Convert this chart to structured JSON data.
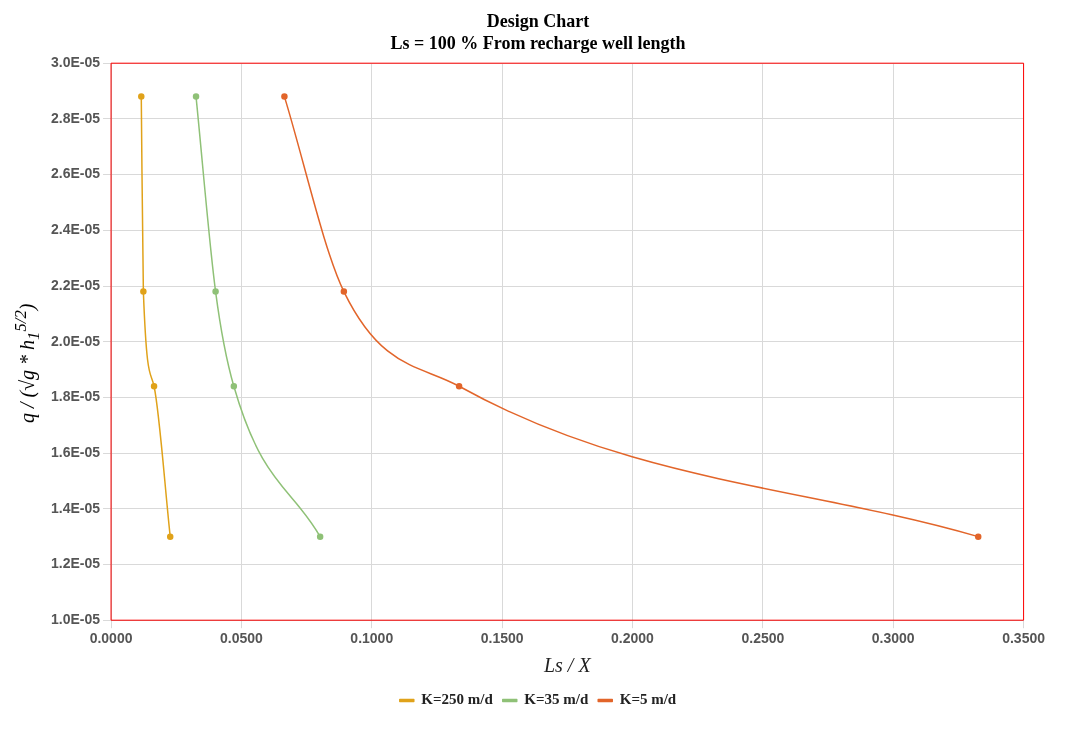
{
  "chart_data": {
    "type": "line",
    "title": "Design Chart",
    "subtitle": "Ls = 100 % From recharge well length",
    "xlabel": "Ls / X",
    "ylabel": "q / (√g * h$_{1}$$^{5/2}$)",
    "series": [
      {
        "name": "K=250 m/d",
        "color": "#e0a21a",
        "x": [
          0.0116,
          0.0124,
          0.0165,
          0.0227
        ],
        "values": [
          2.88e-05,
          2.18e-05,
          1.84e-05,
          1.3e-05
        ]
      },
      {
        "name": "K=35 m/d",
        "color": "#8fc177",
        "x": [
          0.0326,
          0.0401,
          0.0471,
          0.0802
        ],
        "values": [
          2.88e-05,
          2.18e-05,
          1.84e-05,
          1.3e-05
        ]
      },
      {
        "name": "K=5 m/d",
        "color": "#e2652a",
        "x": [
          0.0665,
          0.0893,
          0.1335,
          0.3326
        ],
        "values": [
          2.88e-05,
          2.18e-05,
          1.84e-05,
          1.3e-05
        ]
      }
    ],
    "xlim": [
      0,
      0.35
    ],
    "xticks": [
      {
        "value": 0,
        "label": "0.0000"
      },
      {
        "value": 0.05,
        "label": "0.0500"
      },
      {
        "value": 0.1,
        "label": "0.1000"
      },
      {
        "value": 0.15,
        "label": "0.1500"
      },
      {
        "value": 0.2,
        "label": "0.2000"
      },
      {
        "value": 0.25,
        "label": "0.2500"
      },
      {
        "value": 0.3,
        "label": "0.3000"
      },
      {
        "value": 0.35,
        "label": "0.3500"
      }
    ],
    "ylim": [
      1e-05,
      3e-05
    ],
    "yticks": [
      {
        "value": 1e-05,
        "label": "1.0E-05"
      },
      {
        "value": 1.2e-05,
        "label": "1.2E-05"
      },
      {
        "value": 1.4e-05,
        "label": "1.4E-05"
      },
      {
        "value": 1.6e-05,
        "label": "1.6E-05"
      },
      {
        "value": 1.8e-05,
        "label": "1.8E-05"
      },
      {
        "value": 2e-05,
        "label": "2.0E-05"
      },
      {
        "value": 2.2e-05,
        "label": "2.2E-05"
      },
      {
        "value": 2.4e-05,
        "label": "2.4E-05"
      },
      {
        "value": 2.6e-05,
        "label": "2.6E-05"
      },
      {
        "value": 2.8e-05,
        "label": "2.8E-05"
      },
      {
        "value": 3e-05,
        "label": "3.0E-05"
      }
    ],
    "grid": true,
    "legend": "bottom",
    "marker": "circle",
    "line_style": "solid"
  }
}
